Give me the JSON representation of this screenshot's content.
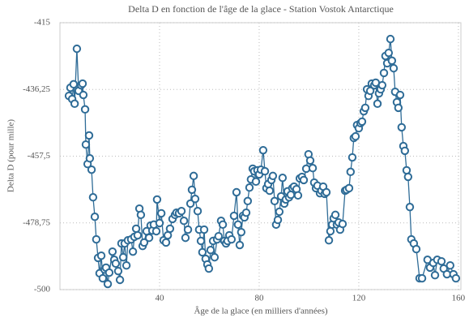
{
  "chart_data": {
    "type": "line",
    "title": "Delta D en fonction de l'âge de la glace - Station Vostok Antarctique",
    "x_label": "Âge de la glace (en milliers d'années)",
    "y_label": "Delta D (pour mille)",
    "xlim": [
      0,
      161
    ],
    "ylim": [
      -500,
      -415
    ],
    "xticks": [
      40,
      80,
      120,
      160
    ],
    "yticks": [
      -500,
      {
        "value": -478.75,
        "label": "-478,75"
      },
      {
        "value": -457.5,
        "label": "-457,5"
      },
      {
        "value": -436.25,
        "label": "-436,25"
      },
      -415
    ],
    "grid": true,
    "x": [
      3.6,
      4.2,
      4.9,
      5.5,
      5.9,
      6.8,
      7.5,
      8.5,
      9.1,
      9.4,
      10.1,
      10.4,
      11.1,
      11.7,
      12.0,
      12.7,
      13.3,
      14.0,
      14.6,
      15.3,
      15.9,
      16.6,
      17.2,
      17.9,
      18.5,
      19.2,
      19.8,
      21.1,
      21.8,
      22.4,
      23.4,
      24.1,
      24.7,
      25.4,
      26.0,
      26.7,
      27.3,
      28.6,
      29.3,
      29.9,
      30.6,
      31.2,
      31.9,
      32.5,
      33.2,
      33.8,
      34.8,
      35.8,
      36.4,
      37.1,
      37.7,
      38.7,
      39.0,
      40.0,
      40.7,
      41.6,
      42.6,
      43.3,
      44.2,
      45.2,
      46.2,
      46.8,
      47.8,
      48.8,
      49.8,
      50.4,
      51.4,
      52.4,
      53.0,
      53.7,
      54.3,
      55.3,
      55.9,
      56.6,
      57.2,
      57.9,
      58.5,
      59.2,
      59.8,
      60.5,
      61.5,
      62.1,
      63.1,
      63.7,
      64.7,
      65.4,
      66.0,
      66.7,
      67.3,
      68.0,
      68.9,
      69.9,
      70.9,
      71.5,
      72.2,
      72.8,
      73.5,
      74.1,
      74.8,
      75.4,
      76.1,
      76.7,
      77.4,
      78.0,
      78.7,
      79.3,
      80.0,
      80.7,
      81.6,
      82.3,
      82.9,
      83.6,
      84.2,
      84.9,
      85.5,
      86.2,
      86.8,
      87.5,
      88.1,
      88.8,
      89.4,
      90.1,
      90.7,
      91.4,
      92.0,
      92.7,
      93.3,
      94.0,
      95.0,
      95.6,
      96.3,
      97.2,
      97.9,
      98.9,
      99.8,
      100.5,
      101.5,
      102.1,
      102.8,
      103.4,
      104.4,
      105.0,
      105.7,
      106.3,
      107.0,
      108.0,
      108.6,
      109.3,
      109.9,
      110.6,
      111.2,
      111.9,
      112.5,
      113.5,
      114.5,
      115.1,
      116.1,
      116.7,
      117.4,
      118.0,
      118.7,
      119.3,
      120.0,
      120.7,
      121.3,
      122.0,
      122.6,
      123.3,
      123.9,
      124.6,
      125.2,
      126.2,
      126.8,
      127.5,
      128.1,
      128.8,
      129.4,
      130.1,
      130.7,
      131.4,
      132.0,
      132.7,
      133.3,
      134.0,
      134.6,
      135.3,
      135.9,
      136.6,
      137.2,
      137.9,
      138.5,
      139.2,
      139.8,
      140.5,
      141.1,
      142.1,
      143.1,
      144.4,
      145.4,
      147.6,
      148.6,
      149.9,
      150.6,
      151.5,
      153.2,
      154.1,
      155.4,
      156.7,
      158.0,
      159.0
    ],
    "series": [
      {
        "color": "#2f6c97",
        "values": [
          -438.3,
          -435.7,
          -439.3,
          -434.6,
          -440.8,
          -423.3,
          -436.7,
          -434.9,
          -434.4,
          -438.0,
          -442.6,
          -453.8,
          -460.0,
          -450.9,
          -458.2,
          -461.8,
          -470.6,
          -476.8,
          -484.0,
          -489.9,
          -494.8,
          -489.2,
          -496.4,
          -493.6,
          -493.0,
          -498.2,
          -494.6,
          -487.9,
          -490.5,
          -491.7,
          -494.1,
          -496.9,
          -485.3,
          -489.7,
          -485.3,
          -492.3,
          -484.3,
          -484.0,
          -487.9,
          -483.2,
          -480.6,
          -482.7,
          -474.2,
          -476.2,
          -486.1,
          -485.0,
          -481.4,
          -483.5,
          -479.6,
          -481.2,
          -479.3,
          -481.4,
          -471.3,
          -478.8,
          -475.7,
          -484.3,
          -485.0,
          -482.7,
          -480.6,
          -477.5,
          -476.2,
          -475.5,
          -475.7,
          -475.0,
          -478.1,
          -483.5,
          -480.9,
          -472.6,
          -468.2,
          -463.8,
          -471.1,
          -475.0,
          -480.9,
          -484.5,
          -488.1,
          -480.9,
          -490.2,
          -492.0,
          -493.3,
          -487.4,
          -484.5,
          -489.7,
          -484.0,
          -483.0,
          -478.1,
          -479.3,
          -484.5,
          -485.3,
          -484.5,
          -482.7,
          -484.0,
          -476.5,
          -469.0,
          -479.3,
          -485.8,
          -481.7,
          -476.5,
          -477.0,
          -475.5,
          -471.8,
          -467.5,
          -464.9,
          -461.5,
          -462.3,
          -465.6,
          -462.0,
          -463.3,
          -461.8,
          -455.6,
          -462.3,
          -467.7,
          -466.4,
          -468.5,
          -465.1,
          -463.8,
          -471.8,
          -479.3,
          -477.8,
          -475.2,
          -470.3,
          -464.4,
          -472.6,
          -471.3,
          -468.7,
          -470.6,
          -469.8,
          -467.7,
          -467.2,
          -468.0,
          -470.0,
          -464.6,
          -464.1,
          -465.1,
          -461.5,
          -456.9,
          -458.9,
          -461.3,
          -465.9,
          -467.7,
          -466.9,
          -469.3,
          -468.5,
          -467.2,
          -469.5,
          -469.0,
          -484.3,
          -481.4,
          -479.3,
          -477.3,
          -476.2,
          -479.3,
          -478.6,
          -480.9,
          -479.1,
          -468.5,
          -468.2,
          -467.7,
          -462.5,
          -457.9,
          -451.7,
          -451.2,
          -447.6,
          -448.6,
          -447.0,
          -446.5,
          -443.2,
          -442.1,
          -436.2,
          -438.3,
          -436.7,
          -434.4,
          -434.9,
          -434.1,
          -440.8,
          -437.5,
          -436.2,
          -434.9,
          -431.0,
          -425.6,
          -427.9,
          -424.6,
          -420.2,
          -427.1,
          -429.5,
          -437.0,
          -440.3,
          -442.1,
          -438.0,
          -448.3,
          -454.3,
          -455.8,
          -462.0,
          -464.1,
          -473.7,
          -484.0,
          -485.3,
          -487.1,
          -496.4,
          -496.4,
          -490.5,
          -493.0,
          -491.5,
          -495.4,
          -490.5,
          -491.0,
          -493.3,
          -495.1,
          -492.3,
          -495.1,
          -496.4
        ]
      }
    ]
  }
}
